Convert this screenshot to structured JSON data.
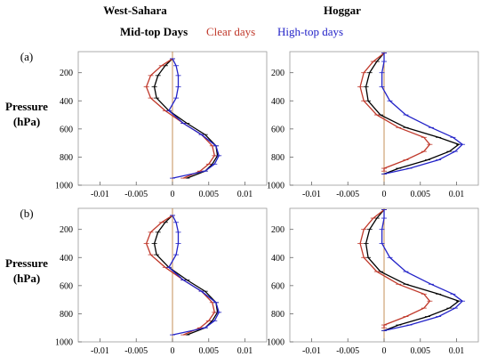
{
  "figure": {
    "column_titles": [
      "West-Sahara",
      "Hoggar"
    ],
    "row_labels": [
      "(a)",
      "(b)"
    ],
    "y_axis_label_line1": "Pressure",
    "y_axis_label_line2": "(hPa)",
    "legend": [
      {
        "label": "Mid-top Days",
        "color": "#000000"
      },
      {
        "label": "Clear days",
        "color": "#c0392b"
      },
      {
        "label": "High-top days",
        "color": "#2323c8"
      }
    ]
  },
  "chart_data": [
    {
      "type": "line",
      "panel": "a-west-sahara",
      "row": "(a)",
      "column": "West-Sahara",
      "xlim": [
        -0.013,
        0.013
      ],
      "ylim": [
        1000,
        50
      ],
      "y_inverted": true,
      "xticks": [
        -0.01,
        -0.005,
        0,
        0.005,
        0.01
      ],
      "xtick_labels": [
        "-0.01",
        "-0.005",
        "0",
        "0.005",
        "0.01"
      ],
      "yticks": [
        200,
        400,
        600,
        800,
        1000
      ],
      "ytick_labels": [
        "200",
        "400",
        "600",
        "800",
        "1000"
      ],
      "series": [
        {
          "name": "Mid-top Days",
          "color": "#000000",
          "x": [
            0,
            -0.001,
            -0.002,
            -0.0025,
            -0.0022,
            -0.0005,
            0.002,
            0.0045,
            0.006,
            0.0062,
            0.0055,
            0.0045,
            0.002
          ],
          "y": [
            100,
            150,
            220,
            300,
            380,
            470,
            560,
            640,
            720,
            790,
            850,
            900,
            950
          ]
        },
        {
          "name": "Clear days",
          "color": "#c0392b",
          "x": [
            0,
            -0.0015,
            -0.003,
            -0.0036,
            -0.003,
            -0.001,
            0.0015,
            0.004,
            0.0055,
            0.0058,
            0.005,
            0.0038,
            0.0015
          ],
          "y": [
            100,
            150,
            220,
            300,
            380,
            470,
            560,
            640,
            720,
            790,
            850,
            900,
            950
          ]
        },
        {
          "name": "High-top days",
          "color": "#2323c8",
          "x": [
            0,
            0.0005,
            0.0008,
            0.0008,
            0.0005,
            -0.0005,
            0.0015,
            0.004,
            0.006,
            0.0064,
            0.0058,
            0.0045,
            0.0
          ],
          "y": [
            100,
            150,
            220,
            300,
            380,
            470,
            560,
            640,
            720,
            790,
            850,
            900,
            950
          ]
        }
      ]
    },
    {
      "type": "line",
      "panel": "a-hoggar",
      "row": "(a)",
      "column": "Hoggar",
      "xlim": [
        -0.013,
        0.013
      ],
      "ylim": [
        1000,
        50
      ],
      "y_inverted": true,
      "xticks": [
        -0.01,
        -0.005,
        0,
        0.005,
        0.01
      ],
      "xtick_labels": [
        "-0.01",
        "-0.005",
        "0",
        "0.005",
        "0.01"
      ],
      "yticks": [
        200,
        400,
        600,
        800,
        1000
      ],
      "ytick_labels": [
        "200",
        "400",
        "600",
        "800",
        "1000"
      ],
      "series": [
        {
          "name": "Mid-top Days",
          "color": "#000000",
          "x": [
            0,
            -0.001,
            -0.002,
            -0.0025,
            -0.0022,
            -0.0005,
            0.003,
            0.0075,
            0.0103,
            0.009,
            0.006,
            0.002,
            0.0
          ],
          "y": [
            60,
            120,
            200,
            300,
            400,
            500,
            590,
            660,
            710,
            760,
            820,
            880,
            920
          ]
        },
        {
          "name": "Clear days",
          "color": "#c0392b",
          "x": [
            0,
            -0.0015,
            -0.0028,
            -0.0033,
            -0.0028,
            -0.001,
            0.002,
            0.0055,
            0.0063,
            0.0055,
            0.003,
            0.0,
            0.0
          ],
          "y": [
            60,
            120,
            200,
            300,
            400,
            500,
            590,
            660,
            710,
            760,
            820,
            880,
            900
          ]
        },
        {
          "name": "High-top days",
          "color": "#2323c8",
          "x": [
            0,
            0.0,
            -0.0003,
            -0.0003,
            0.0008,
            0.003,
            0.0065,
            0.0095,
            0.0108,
            0.0098,
            0.0075,
            0.0035,
            0.0
          ],
          "y": [
            60,
            120,
            200,
            300,
            400,
            500,
            590,
            660,
            710,
            760,
            820,
            880,
            920
          ]
        }
      ]
    },
    {
      "type": "line",
      "panel": "b-west-sahara",
      "row": "(b)",
      "column": "West-Sahara",
      "xlim": [
        -0.013,
        0.013
      ],
      "ylim": [
        1000,
        50
      ],
      "y_inverted": true,
      "xticks": [
        -0.01,
        -0.005,
        0,
        0.005,
        0.01
      ],
      "xtick_labels": [
        "-0.01",
        "-0.005",
        "0",
        "0.005",
        "0.01"
      ],
      "yticks": [
        200,
        400,
        600,
        800,
        1000
      ],
      "ytick_labels": [
        "200",
        "400",
        "600",
        "800",
        "1000"
      ],
      "series": [
        {
          "name": "Mid-top Days",
          "color": "#000000",
          "x": [
            0,
            -0.001,
            -0.002,
            -0.0025,
            -0.0022,
            -0.0005,
            0.002,
            0.0045,
            0.006,
            0.0062,
            0.0055,
            0.0045,
            0.002
          ],
          "y": [
            100,
            150,
            220,
            300,
            380,
            470,
            560,
            640,
            720,
            790,
            850,
            900,
            950
          ]
        },
        {
          "name": "Clear days",
          "color": "#c0392b",
          "x": [
            0,
            -0.0015,
            -0.003,
            -0.0036,
            -0.003,
            -0.001,
            0.0015,
            0.004,
            0.0055,
            0.0058,
            0.005,
            0.0038,
            0.0015
          ],
          "y": [
            100,
            150,
            220,
            300,
            380,
            470,
            560,
            640,
            720,
            790,
            850,
            900,
            950
          ]
        },
        {
          "name": "High-top days",
          "color": "#2323c8",
          "x": [
            0,
            0.0005,
            0.0008,
            0.0008,
            0.0005,
            -0.0005,
            0.0015,
            0.004,
            0.006,
            0.0064,
            0.0058,
            0.0045,
            0.0
          ],
          "y": [
            100,
            150,
            220,
            300,
            380,
            470,
            560,
            640,
            720,
            790,
            850,
            900,
            950
          ]
        }
      ]
    },
    {
      "type": "line",
      "panel": "b-hoggar",
      "row": "(b)",
      "column": "Hoggar",
      "xlim": [
        -0.013,
        0.013
      ],
      "ylim": [
        1000,
        50
      ],
      "y_inverted": true,
      "xticks": [
        -0.01,
        -0.005,
        0,
        0.005,
        0.01
      ],
      "xtick_labels": [
        "-0.01",
        "-0.005",
        "0",
        "0.005",
        "0.01"
      ],
      "yticks": [
        200,
        400,
        600,
        800,
        1000
      ],
      "ytick_labels": [
        "200",
        "400",
        "600",
        "800",
        "1000"
      ],
      "series": [
        {
          "name": "Mid-top Days",
          "color": "#000000",
          "x": [
            0,
            -0.001,
            -0.002,
            -0.0025,
            -0.0022,
            -0.0005,
            0.003,
            0.0075,
            0.0103,
            0.009,
            0.006,
            0.002,
            0.0
          ],
          "y": [
            60,
            120,
            200,
            300,
            400,
            500,
            590,
            660,
            710,
            760,
            820,
            880,
            920
          ]
        },
        {
          "name": "Clear days",
          "color": "#c0392b",
          "x": [
            0,
            -0.0015,
            -0.0028,
            -0.0033,
            -0.0028,
            -0.001,
            0.002,
            0.0055,
            0.0063,
            0.0055,
            0.003,
            0.0,
            0.0
          ],
          "y": [
            60,
            120,
            200,
            300,
            400,
            500,
            590,
            660,
            710,
            760,
            820,
            880,
            900
          ]
        },
        {
          "name": "High-top days",
          "color": "#2323c8",
          "x": [
            0,
            0.0,
            -0.0003,
            -0.0003,
            0.0008,
            0.003,
            0.0065,
            0.0095,
            0.0108,
            0.0098,
            0.0075,
            0.0035,
            0.0
          ],
          "y": [
            60,
            120,
            200,
            300,
            400,
            500,
            590,
            660,
            710,
            760,
            820,
            880,
            920
          ]
        }
      ]
    }
  ]
}
